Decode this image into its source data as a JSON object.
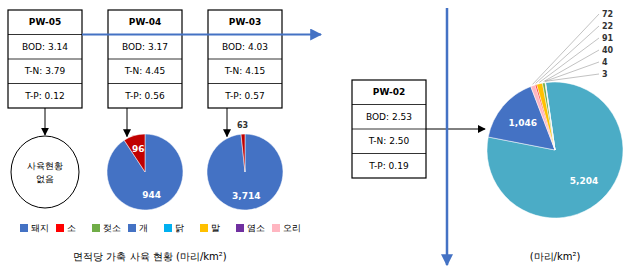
{
  "chart_data": [
    {
      "type": "pie",
      "title": "면적당 가축 사육 현황 (마리/km²)",
      "values": [
        944,
        96
      ],
      "value_labels": [
        "944",
        "96"
      ],
      "colors": [
        "#4472C4",
        "#C00000"
      ],
      "data_labels": true
    },
    {
      "type": "pie",
      "values": [
        3714,
        63
      ],
      "value_labels": [
        "3,714",
        "63"
      ],
      "colors": [
        "#4472C4",
        "#C00000"
      ],
      "data_labels": true
    },
    {
      "type": "pie",
      "title": "(마리/km²)",
      "values": [
        5204,
        1046,
        72,
        22,
        91,
        40,
        4,
        3
      ],
      "value_labels": [
        "5,204",
        "1,046",
        "72",
        "22",
        "91",
        "40",
        "4",
        "3"
      ],
      "colors": [
        "#4BACC6",
        "#4472C4",
        "#FFB6C1",
        "#FF0000",
        "#FFC000",
        "#70AD47",
        "#7030A0",
        "#C0C0C0"
      ],
      "data_labels": true
    },
    {
      "type": "diagram",
      "color": "#4472C4",
      "annotations": [
        [
          "PW-05",
          "BOD: 3.14",
          "T-N: 3.79",
          "T-P: 0.12"
        ],
        [
          "PW-04",
          "BOD: 3.17",
          "T-N: 4.45",
          "T-P: 0.56"
        ],
        [
          "PW-03",
          "BOD: 4.03",
          "T-N: 4.15",
          "T-P: 0.57"
        ],
        [
          "PW-02",
          "BOD: 2.53",
          "T-N: 2.50",
          "T-P: 0.19"
        ],
        [
          "사육현황",
          "없음"
        ]
      ],
      "series": [
        {
          "name": "돼지",
          "color": "#4472C4"
        },
        {
          "name": "소",
          "color": "#FF0000"
        },
        {
          "name": "젖소",
          "color": "#70AD47"
        },
        {
          "name": "개",
          "color": "#4472C4"
        },
        {
          "name": "닭",
          "color": "#00B0F0"
        },
        {
          "name": "말",
          "color": "#FFC000"
        },
        {
          "name": "염소",
          "color": "#7030A0"
        },
        {
          "name": "오리",
          "color": "#FFB6C1"
        }
      ]
    }
  ]
}
